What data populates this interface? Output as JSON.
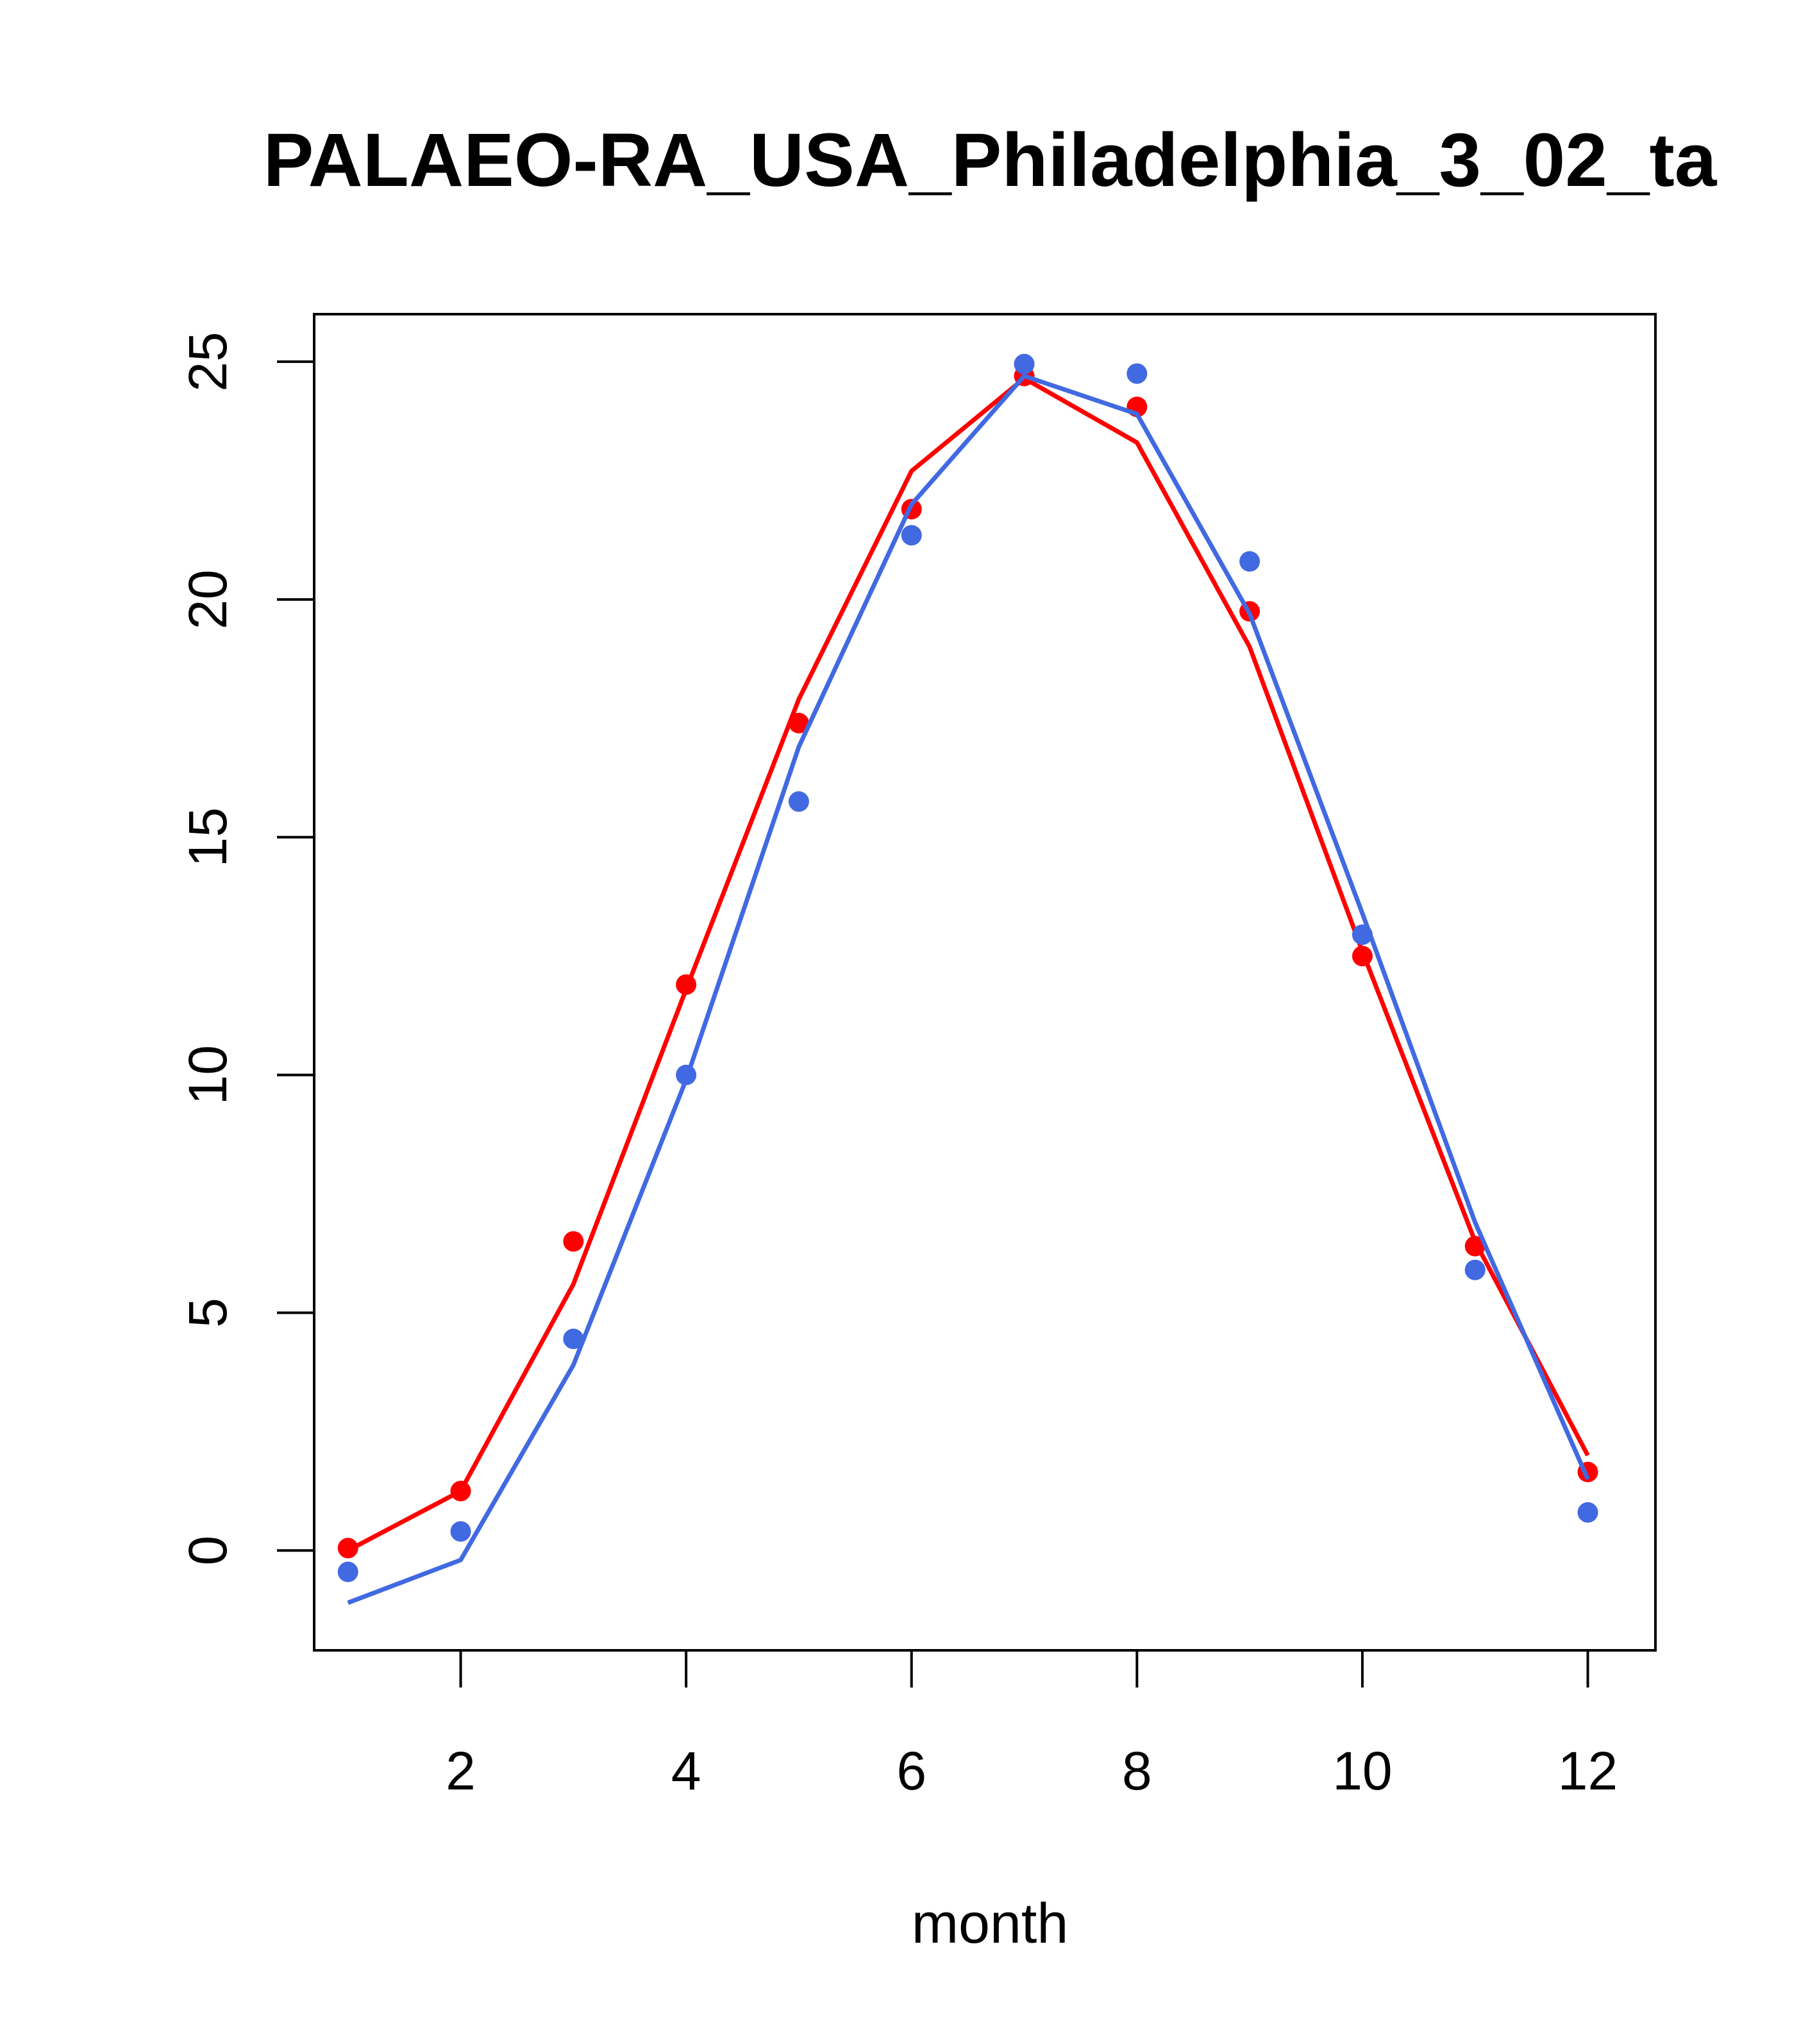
{
  "chart_data": {
    "type": "scatter",
    "title": "PALAEO-RA_USA_Philadelphia_3_02_ta",
    "xlabel": "month",
    "ylabel": "",
    "xlim": [
      0.7,
      12.6
    ],
    "ylim": [
      -2.1,
      26.0
    ],
    "xticks": [
      2,
      4,
      6,
      8,
      10,
      12
    ],
    "yticks": [
      0,
      5,
      10,
      15,
      20,
      25
    ],
    "grid": false,
    "legend": "none",
    "x": [
      1,
      2,
      3,
      4,
      5,
      6,
      7,
      8,
      9,
      10,
      11,
      12
    ],
    "series": [
      {
        "color": "#ff0000",
        "points": [
          0.05,
          1.25,
          6.5,
          11.9,
          17.4,
          21.9,
          24.7,
          24.05,
          19.75,
          12.5,
          6.4,
          1.65
        ],
        "line": [
          0.0,
          1.25,
          5.6,
          11.8,
          17.9,
          22.7,
          24.65,
          23.3,
          19.0,
          12.6,
          6.5,
          2.0
        ]
      },
      {
        "color": "#4169e1",
        "points": [
          -0.45,
          0.4,
          4.45,
          10.0,
          15.75,
          21.35,
          24.95,
          24.75,
          20.8,
          12.95,
          5.9,
          0.8
        ],
        "line": [
          -1.1,
          -0.2,
          3.9,
          9.9,
          16.9,
          22.0,
          24.7,
          23.9,
          19.7,
          13.4,
          6.9,
          1.5
        ]
      }
    ]
  }
}
